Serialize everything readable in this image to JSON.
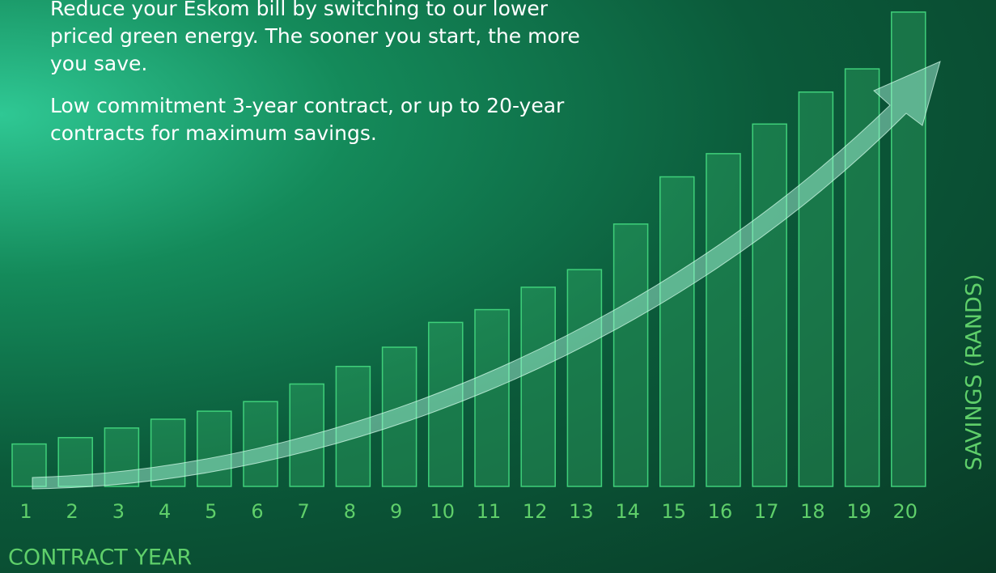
{
  "chart_data": {
    "type": "bar",
    "annotations": [
      "Reduce your Eskom bill by switching to our lower priced green energy. The sooner you start, the more you save.",
      "Low commitment 3-year contract, or up to 20-year contracts for maximum savings."
    ],
    "x_label": "CONTRACT YEAR",
    "y_label": "SAVINGS (RANDS)",
    "categories": [
      "1",
      "2",
      "3",
      "4",
      "5",
      "6",
      "7",
      "8",
      "9",
      "10",
      "11",
      "12",
      "13",
      "14",
      "15",
      "16",
      "17",
      "18",
      "19",
      "20"
    ],
    "values": [
      53,
      61,
      73,
      84,
      94,
      106,
      128,
      150,
      174,
      205,
      221,
      249,
      271,
      328,
      387,
      416,
      453,
      493,
      522,
      593
    ],
    "color": "#3fd07a",
    "ylim": [
      0,
      600
    ]
  }
}
